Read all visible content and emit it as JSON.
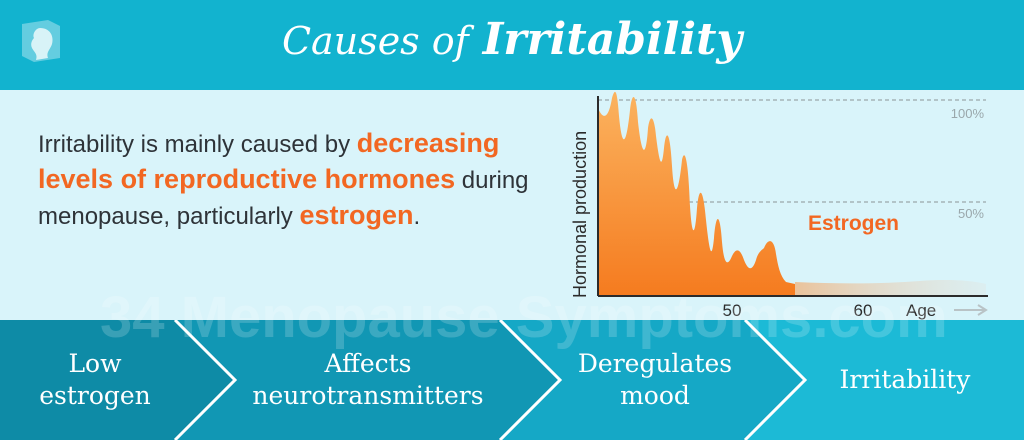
{
  "header": {
    "title_prefix": "Causes of",
    "title_main": "Irritability"
  },
  "intro": {
    "text_1": "Irritability is mainly caused by ",
    "highlight_1": "decreasing levels of reproductive hormones",
    "text_2": " during menopause, particularly ",
    "highlight_2": "estrogen",
    "text_3": "."
  },
  "chart_data": {
    "type": "area",
    "series": [
      {
        "name": "Estrogen",
        "color": "#f5891f"
      }
    ],
    "ylabel": "Hormonal production",
    "xlabel": "Age",
    "x_ticks": [
      "50",
      "60"
    ],
    "reference_lines": [
      "100%",
      "50%"
    ],
    "grid": false
  },
  "watermark": "34 Menopause Symptoms.com",
  "flow": {
    "steps": [
      {
        "label_1": "Low",
        "label_2": "estrogen"
      },
      {
        "label_1": "Affects",
        "label_2": "neurotransmitters"
      },
      {
        "label_1": "Deregulates",
        "label_2": "mood"
      },
      {
        "label_1": "Irritability",
        "label_2": ""
      }
    ]
  },
  "colors": {
    "header": "#12b3cf",
    "background": "#d9f4fa",
    "accent": "#f26722",
    "flow_shades": [
      "#0e8ba6",
      "#1197b4",
      "#15a8c6",
      "#1cbad6"
    ]
  }
}
